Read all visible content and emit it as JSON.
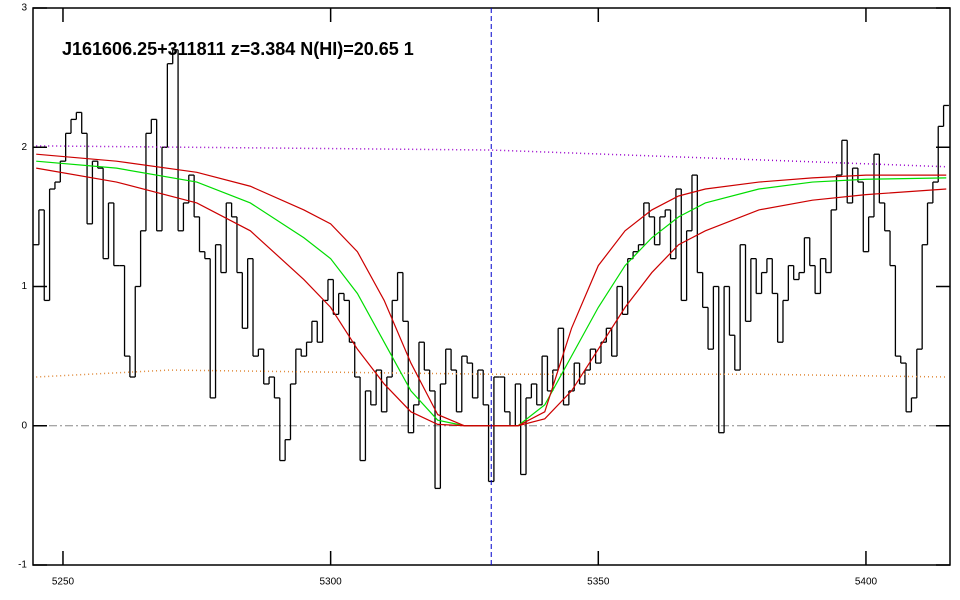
{
  "chart_data": {
    "type": "line",
    "title": "J161606.25+311811 z=3.384 N(HI)=20.65 1",
    "xlim": [
      5244.4,
      5415.7
    ],
    "ylim": [
      -1,
      3
    ],
    "xticks": [
      5250,
      5300,
      5350,
      5400
    ],
    "yticks": [
      -1,
      0,
      1,
      2,
      3
    ],
    "hline": 0,
    "vline": 5330,
    "series": [
      {
        "style": "step",
        "color": "#000000",
        "x": [
          5245,
          5246,
          5247,
          5248,
          5249,
          5250,
          5251,
          5252,
          5253,
          5254,
          5255,
          5256,
          5257,
          5258,
          5259,
          5260,
          5261,
          5262,
          5263,
          5264,
          5265,
          5266,
          5267,
          5268,
          5269,
          5270,
          5271,
          5272,
          5273,
          5274,
          5275,
          5276,
          5277,
          5278,
          5279,
          5280,
          5281,
          5282,
          5283,
          5284,
          5285,
          5286,
          5287,
          5288,
          5289,
          5290,
          5291,
          5292,
          5293,
          5294,
          5295,
          5296,
          5297,
          5298,
          5299,
          5300,
          5301,
          5302,
          5303,
          5304,
          5305,
          5306,
          5307,
          5308,
          5309,
          5310,
          5311,
          5312,
          5313,
          5314,
          5315,
          5316,
          5317,
          5318,
          5319,
          5320,
          5321,
          5322,
          5323,
          5324,
          5325,
          5326,
          5327,
          5328,
          5329,
          5330,
          5331,
          5332,
          5333,
          5334,
          5335,
          5336,
          5337,
          5338,
          5339,
          5340,
          5341,
          5342,
          5343,
          5344,
          5345,
          5346,
          5347,
          5348,
          5349,
          5350,
          5351,
          5352,
          5353,
          5354,
          5355,
          5356,
          5357,
          5358,
          5359,
          5360,
          5361,
          5362,
          5363,
          5364,
          5365,
          5366,
          5367,
          5368,
          5369,
          5370,
          5371,
          5372,
          5373,
          5374,
          5375,
          5376,
          5377,
          5378,
          5379,
          5380,
          5381,
          5382,
          5383,
          5384,
          5385,
          5386,
          5387,
          5388,
          5389,
          5390,
          5391,
          5392,
          5393,
          5394,
          5395,
          5396,
          5397,
          5398,
          5399,
          5400,
          5401,
          5402,
          5403,
          5404,
          5405,
          5406,
          5407,
          5408,
          5409,
          5410,
          5411,
          5412,
          5413,
          5414,
          5415
        ],
        "values": [
          1.3,
          1.55,
          0.9,
          1.7,
          1.75,
          1.9,
          2.1,
          2.2,
          2.25,
          2.1,
          1.45,
          1.9,
          1.85,
          1.2,
          1.6,
          1.15,
          1.15,
          0.5,
          0.35,
          1.0,
          1.4,
          2.1,
          2.2,
          1.4,
          2.0,
          2.6,
          2.7,
          1.4,
          1.6,
          1.8,
          1.5,
          1.25,
          1.2,
          0.2,
          1.3,
          1.1,
          1.6,
          1.5,
          1.1,
          0.7,
          1.2,
          0.5,
          0.55,
          0.3,
          0.35,
          0.2,
          -0.25,
          -0.1,
          0.3,
          0.55,
          0.5,
          0.6,
          0.75,
          0.6,
          0.9,
          1.05,
          0.8,
          0.95,
          0.9,
          0.6,
          0.35,
          -0.25,
          0.25,
          0.15,
          0.4,
          0.1,
          0.35,
          0.9,
          1.1,
          0.75,
          -0.05,
          0.15,
          0.6,
          0.4,
          0.25,
          -0.45,
          0.3,
          0.55,
          0.4,
          0.1,
          0.5,
          0.45,
          0.2,
          0.4,
          0.15,
          -0.4,
          0.35,
          0.35,
          0.1,
          0.0,
          0.3,
          -0.35,
          0.2,
          0.3,
          0.15,
          0.5,
          0.25,
          0.4,
          0.7,
          0.15,
          0.25,
          0.45,
          0.3,
          0.4,
          0.55,
          0.45,
          0.6,
          0.7,
          0.5,
          1.0,
          0.8,
          1.2,
          1.25,
          1.3,
          1.6,
          1.5,
          1.3,
          1.5,
          1.55,
          1.2,
          1.7,
          0.9,
          1.4,
          1.8,
          1.1,
          0.85,
          0.55,
          1.0,
          -0.05,
          1.0,
          0.65,
          0.4,
          1.3,
          0.75,
          1.2,
          0.95,
          1.1,
          1.2,
          0.95,
          0.6,
          0.9,
          1.15,
          1.05,
          1.1,
          1.35,
          1.15,
          0.95,
          1.2,
          1.1,
          1.55,
          1.8,
          2.05,
          1.6,
          1.85,
          1.75,
          1.25,
          1.5,
          1.95,
          1.6,
          1.4,
          1.15,
          0.5,
          0.45,
          0.1,
          0.2,
          0.55,
          1.3,
          1.6,
          1.75,
          2.15,
          2.3
        ]
      },
      {
        "style": "dotted",
        "color": "#9900cc",
        "x": [
          5245,
          5330,
          5415
        ],
        "values": [
          2.01,
          1.98,
          1.86
        ]
      },
      {
        "style": "dotted",
        "color": "#e08a3a",
        "x": [
          5245,
          5270,
          5330,
          5380,
          5415
        ],
        "values": [
          0.35,
          0.4,
          0.37,
          0.37,
          0.35
        ]
      },
      {
        "style": "solid",
        "color": "#00dd00",
        "x": [
          5245,
          5260,
          5275,
          5285,
          5295,
          5300,
          5305,
          5310,
          5315,
          5320,
          5325,
          5330,
          5335,
          5340,
          5345,
          5350,
          5355,
          5360,
          5365,
          5370,
          5380,
          5390,
          5400,
          5415
        ],
        "values": [
          1.9,
          1.85,
          1.75,
          1.6,
          1.35,
          1.2,
          0.95,
          0.6,
          0.25,
          0.04,
          0,
          0,
          0,
          0.15,
          0.5,
          0.85,
          1.15,
          1.35,
          1.5,
          1.6,
          1.7,
          1.75,
          1.77,
          1.78
        ]
      },
      {
        "style": "solid",
        "color": "#cc0000",
        "x": [
          5245,
          5260,
          5275,
          5285,
          5295,
          5300,
          5305,
          5310,
          5315,
          5320,
          5325,
          5330,
          5335,
          5340,
          5345,
          5350,
          5355,
          5360,
          5365,
          5370,
          5380,
          5390,
          5400,
          5415
        ],
        "values": [
          1.95,
          1.9,
          1.82,
          1.72,
          1.55,
          1.45,
          1.25,
          0.9,
          0.45,
          0.08,
          0,
          0,
          0,
          0.1,
          0.7,
          1.15,
          1.4,
          1.55,
          1.65,
          1.7,
          1.75,
          1.78,
          1.8,
          1.8
        ]
      },
      {
        "style": "solid",
        "color": "#cc0000",
        "x": [
          5245,
          5260,
          5275,
          5285,
          5295,
          5300,
          5305,
          5310,
          5315,
          5320,
          5325,
          5330,
          5335,
          5340,
          5345,
          5350,
          5355,
          5360,
          5365,
          5370,
          5380,
          5390,
          5400,
          5415
        ],
        "values": [
          1.85,
          1.75,
          1.6,
          1.4,
          1.05,
          0.85,
          0.55,
          0.3,
          0.1,
          0.01,
          0,
          0,
          0,
          0.05,
          0.25,
          0.55,
          0.85,
          1.1,
          1.3,
          1.4,
          1.55,
          1.62,
          1.66,
          1.7
        ]
      }
    ]
  }
}
